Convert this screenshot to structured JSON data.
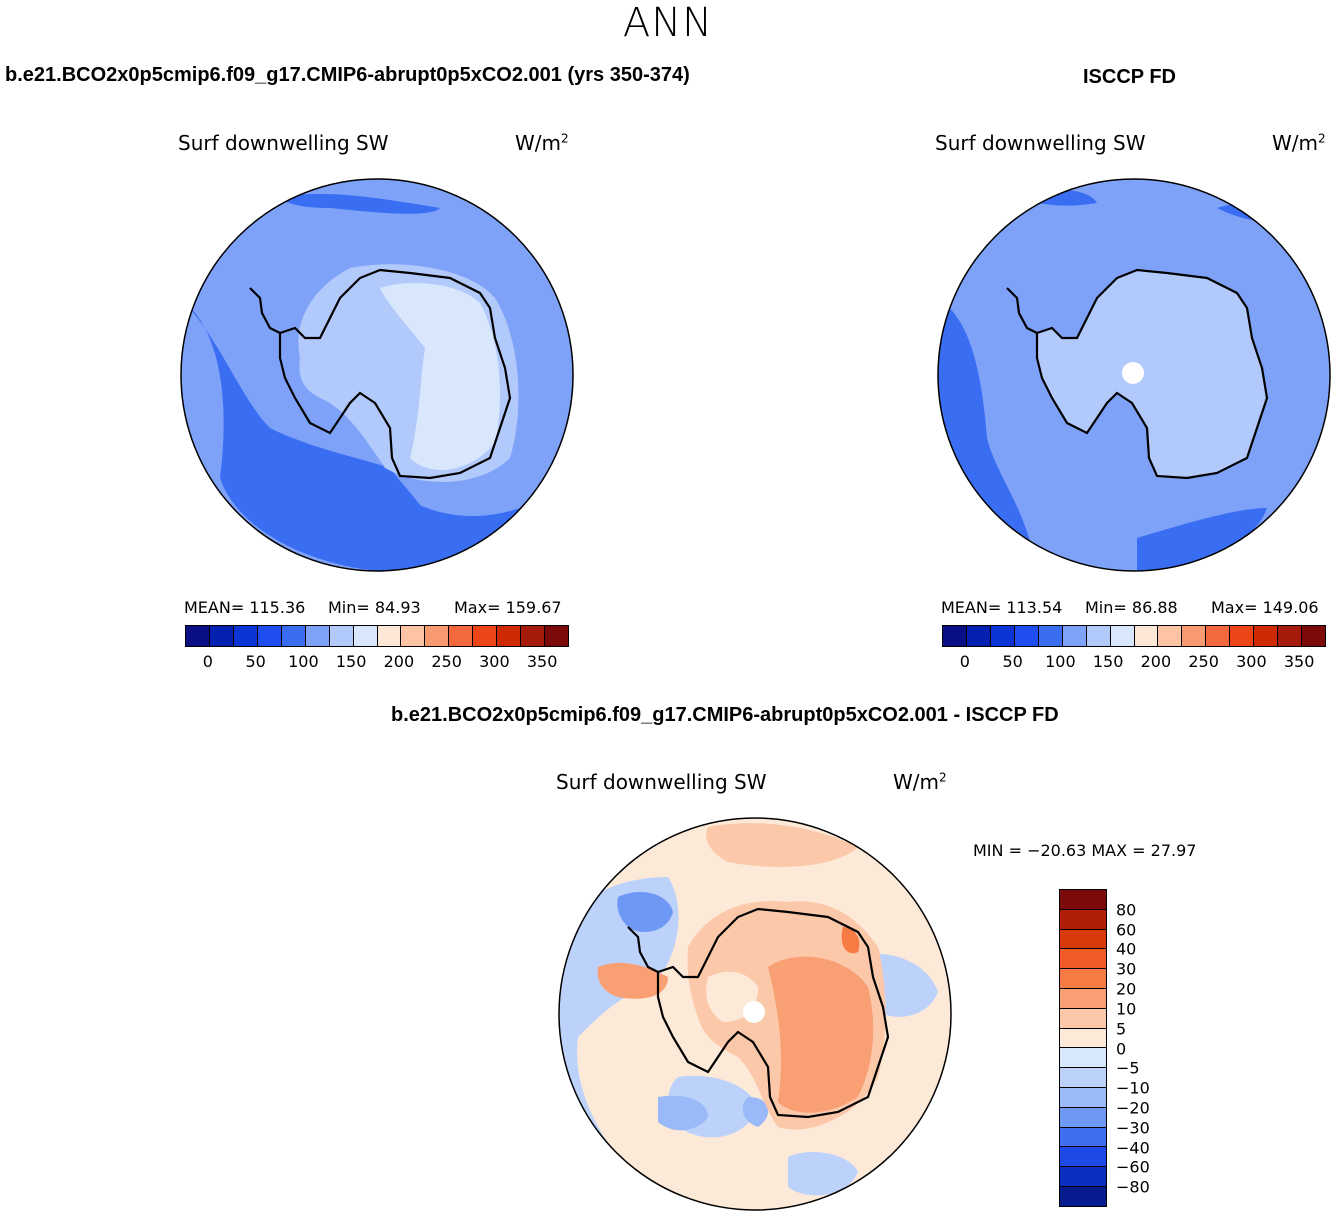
{
  "season": "ANN",
  "panels": {
    "model": {
      "title": "b.e21.BCO2x0p5cmip6.f09_g17.CMIP6-abrupt0p5xCO2.001 (yrs 350-374)",
      "variable": "Surf downwelling SW",
      "units_base": "W/m",
      "units_exp": "2",
      "stats": {
        "mean": "MEAN= 115.36",
        "min": "Min=  84.93",
        "max": "Max= 159.67"
      },
      "colorbar": {
        "ticks": [
          "0",
          "50",
          "100",
          "150",
          "200",
          "250",
          "300",
          "350"
        ],
        "colors": [
          "#0a0f85",
          "#0521b0",
          "#0d35d6",
          "#1e4ef0",
          "#3a6ef2",
          "#7fa2f9",
          "#b1c9fb",
          "#d9e7fd",
          "#fde7d6",
          "#fcc3a5",
          "#f89a70",
          "#f3693d",
          "#ec4616",
          "#cf2a06",
          "#a51a0a",
          "#7d0a0a"
        ]
      }
    },
    "obs": {
      "title": "ISCCP FD",
      "variable": "Surf downwelling SW",
      "units_base": "W/m",
      "units_exp": "2",
      "stats": {
        "mean": "MEAN= 113.54",
        "min": "Min=  86.88",
        "max": "Max= 149.06"
      },
      "colorbar": {
        "ticks": [
          "0",
          "50",
          "100",
          "150",
          "200",
          "250",
          "300",
          "350"
        ]
      }
    },
    "diff": {
      "title": "b.e21.BCO2x0p5cmip6.f09_g17.CMIP6-abrupt0p5xCO2.001 - ISCCP FD",
      "variable": "Surf downwelling SW",
      "units_base": "W/m",
      "units_exp": "2",
      "minmax": "MIN = −20.63 MAX =  27.97",
      "colorbar": {
        "labels": [
          "80",
          "60",
          "40",
          "30",
          "20",
          "10",
          "5",
          "0",
          "−5",
          "−10",
          "−20",
          "−30",
          "−40",
          "−60",
          "−80"
        ],
        "colors": [
          "#7d0a0a",
          "#b11e08",
          "#d93a0b",
          "#f05a24",
          "#f57a44",
          "#f99f74",
          "#fcc8aa",
          "#fde9d8",
          "#d8e8fd",
          "#bdd2fb",
          "#9ab9f9",
          "#6f98f4",
          "#3f6ef1",
          "#1d4ae6",
          "#0b2fbf",
          "#061b8e"
        ]
      }
    }
  }
}
